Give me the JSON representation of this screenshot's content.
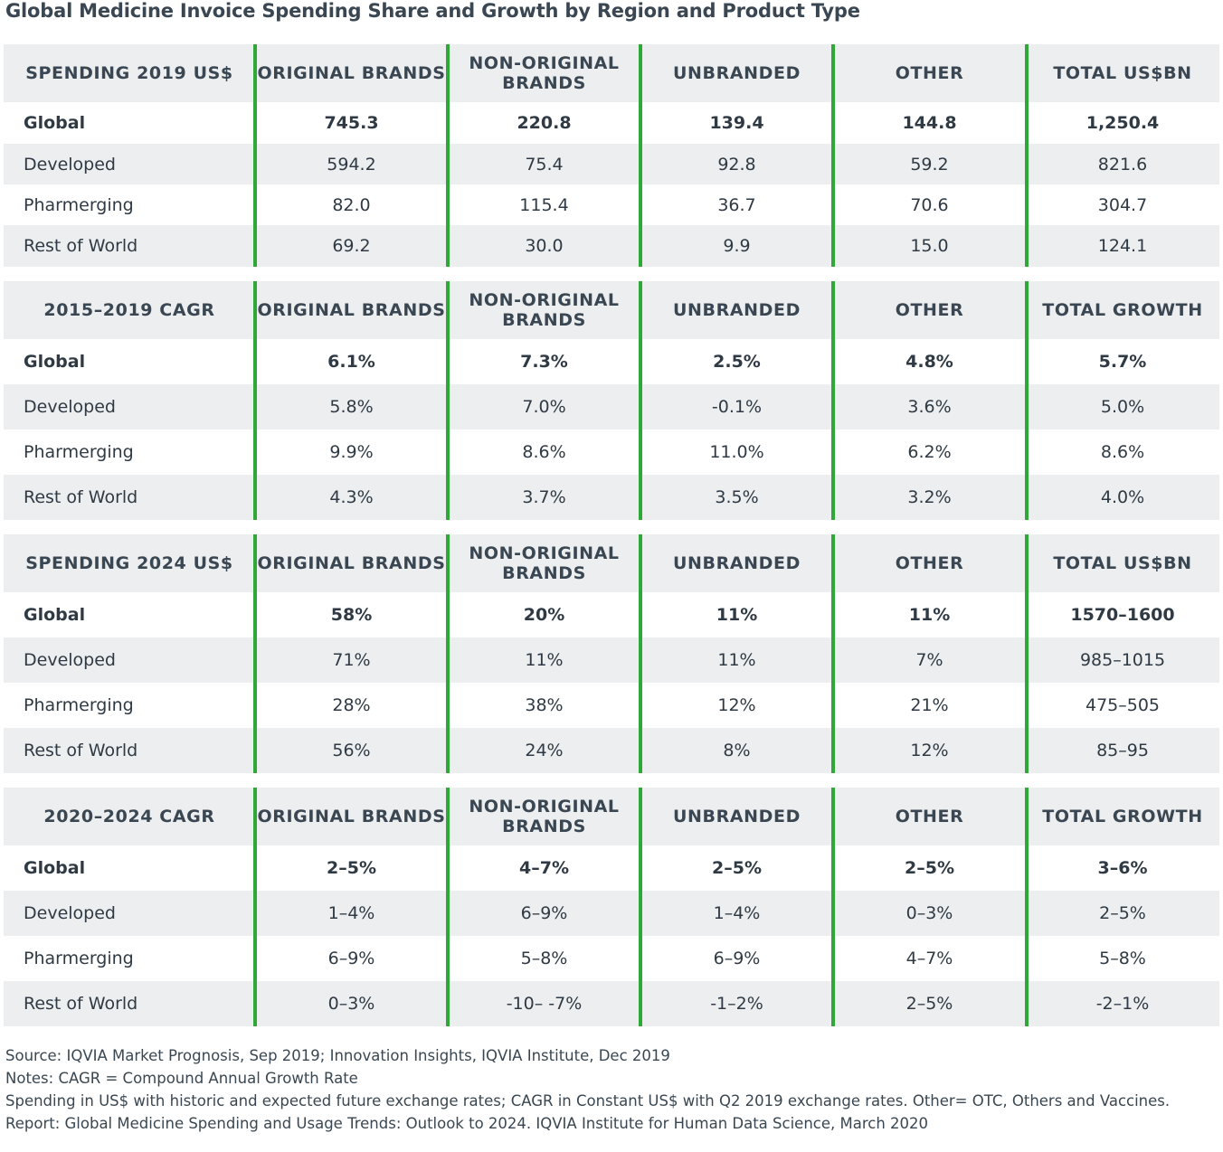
{
  "title": "Global Medicine Invoice Spending Share and Growth by Region and Product Type",
  "chart_data": {
    "type": "table",
    "sections": [
      {
        "headers": [
          "SPENDING 2019 US$",
          "ORIGINAL BRANDS",
          "NON-ORIGINAL BRANDS",
          "UNBRANDED",
          "OTHER",
          "TOTAL US$BN"
        ],
        "rows": [
          {
            "region": "Global",
            "values": [
              "745.3",
              "220.8",
              "139.4",
              "144.8",
              "1,250.4"
            ]
          },
          {
            "region": "Developed",
            "values": [
              "594.2",
              "75.4",
              "92.8",
              "59.2",
              "821.6"
            ]
          },
          {
            "region": "Pharmerging",
            "values": [
              "82.0",
              "115.4",
              "36.7",
              "70.6",
              "304.7"
            ]
          },
          {
            "region": "Rest of World",
            "values": [
              "69.2",
              "30.0",
              "9.9",
              "15.0",
              "124.1"
            ]
          }
        ]
      },
      {
        "headers": [
          "2015–2019 CAGR",
          "ORIGINAL BRANDS",
          "NON-ORIGINAL BRANDS",
          "UNBRANDED",
          "OTHER",
          "TOTAL GROWTH"
        ],
        "rows": [
          {
            "region": "Global",
            "values": [
              "6.1%",
              "7.3%",
              "2.5%",
              "4.8%",
              "5.7%"
            ]
          },
          {
            "region": "Developed",
            "values": [
              "5.8%",
              "7.0%",
              "-0.1%",
              "3.6%",
              "5.0%"
            ]
          },
          {
            "region": "Pharmerging",
            "values": [
              "9.9%",
              "8.6%",
              "11.0%",
              "6.2%",
              "8.6%"
            ]
          },
          {
            "region": "Rest of World",
            "values": [
              "4.3%",
              "3.7%",
              "3.5%",
              "3.2%",
              "4.0%"
            ]
          }
        ]
      },
      {
        "headers": [
          "SPENDING 2024 US$",
          "ORIGINAL BRANDS",
          "NON-ORIGINAL BRANDS",
          "UNBRANDED",
          "OTHER",
          "TOTAL US$BN"
        ],
        "rows": [
          {
            "region": "Global",
            "values": [
              "58%",
              "20%",
              "11%",
              "11%",
              "1570–1600"
            ]
          },
          {
            "region": "Developed",
            "values": [
              "71%",
              "11%",
              "11%",
              "7%",
              "985–1015"
            ]
          },
          {
            "region": "Pharmerging",
            "values": [
              "28%",
              "38%",
              "12%",
              "21%",
              "475–505"
            ]
          },
          {
            "region": "Rest of World",
            "values": [
              "56%",
              "24%",
              "8%",
              "12%",
              "85–95"
            ]
          }
        ]
      },
      {
        "headers": [
          "2020–2024 CAGR",
          "ORIGINAL BRANDS",
          "NON-ORIGINAL BRANDS",
          "UNBRANDED",
          "OTHER",
          "TOTAL GROWTH"
        ],
        "rows": [
          {
            "region": "Global",
            "values": [
              "2–5%",
              "4–7%",
              "2–5%",
              "2–5%",
              "3–6%"
            ]
          },
          {
            "region": "Developed",
            "values": [
              "1–4%",
              "6–9%",
              "1–4%",
              "0–3%",
              "2–5%"
            ]
          },
          {
            "region": "Pharmerging",
            "values": [
              "6–9%",
              "5–8%",
              "6–9%",
              "4–7%",
              "5–8%"
            ]
          },
          {
            "region": "Rest of World",
            "values": [
              "0–3%",
              "-10– -7%",
              "-1–2%",
              "2–5%",
              "-2–1%"
            ]
          }
        ]
      }
    ]
  },
  "notes": {
    "source": "Source: IQVIA Market Prognosis, Sep 2019; Innovation Insights, IQVIA Institute, Dec 2019",
    "notes1": "Notes: CAGR = Compound Annual Growth Rate",
    "notes2": "Spending in US$ with historic and expected future exchange rates; CAGR in Constant US$ with Q2 2019 exchange rates. Other= OTC, Others and Vaccines.",
    "report": "Report: Global Medicine Spending and Usage Trends: Outlook to 2024. IQVIA Institute for Human Data Science, March 2020"
  },
  "colors": {
    "divider": "#2ea836",
    "header_bg": "#eceef0",
    "text": "#2f3a44"
  }
}
